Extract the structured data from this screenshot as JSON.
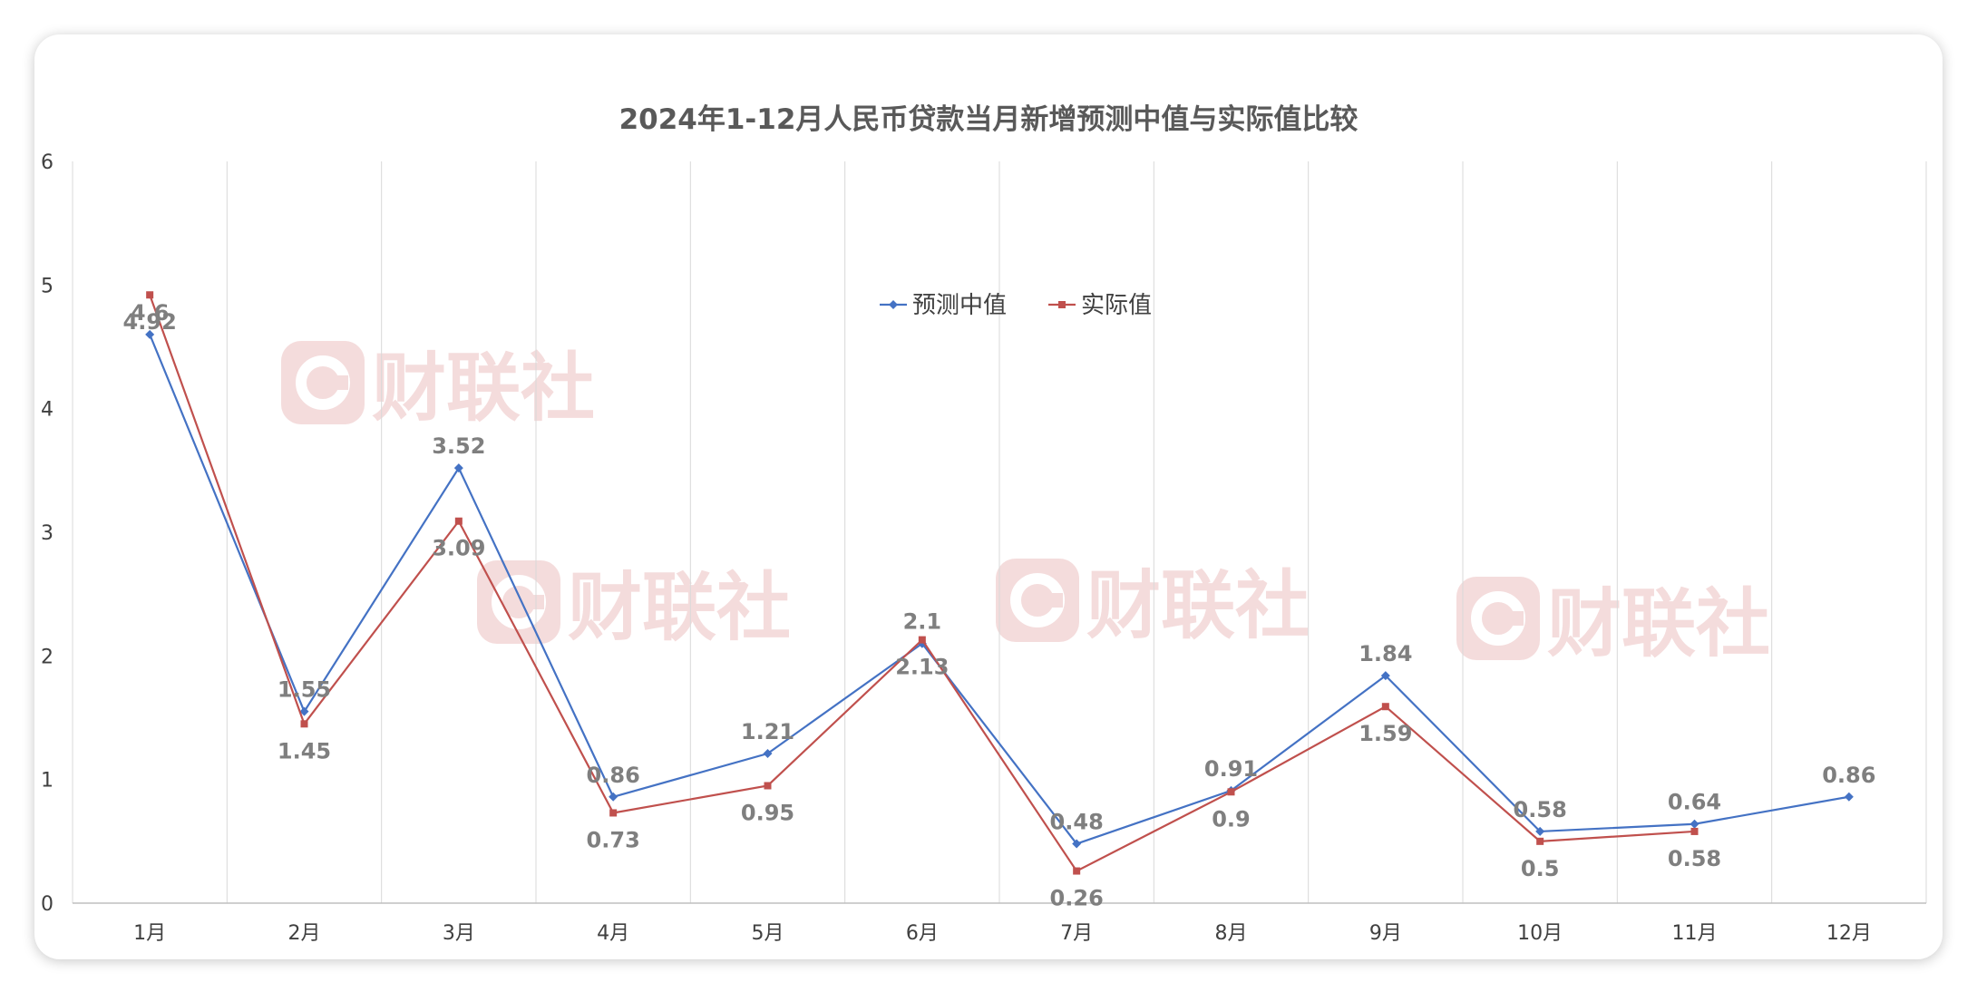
{
  "chart_data": {
    "type": "line",
    "title": "2024年1-12月人民币贷款当月新增预测中值与实际值比较",
    "xlabel": "",
    "ylabel": "",
    "categories": [
      "1月",
      "2月",
      "3月",
      "4月",
      "5月",
      "6月",
      "7月",
      "8月",
      "9月",
      "10月",
      "11月",
      "12月"
    ],
    "ylim": [
      0,
      6
    ],
    "yticks": [
      "0",
      "1",
      "2",
      "3",
      "4",
      "5",
      "6"
    ],
    "grid": "vertical",
    "legend_position": "top-center",
    "series": [
      {
        "name": "预测中值",
        "color": "#4472c4",
        "values": [
          4.6,
          1.55,
          3.52,
          0.86,
          1.21,
          2.1,
          0.48,
          0.91,
          1.84,
          0.58,
          0.64,
          0.86
        ],
        "labels": [
          "4.6",
          "1.55",
          "3.52",
          "0.86",
          "1.21",
          "2.1",
          "0.48",
          "0.91",
          "1.84",
          "0.58",
          "0.64",
          "0.86"
        ]
      },
      {
        "name": "实际值",
        "color": "#c0504d",
        "values": [
          4.92,
          1.45,
          3.09,
          0.73,
          0.95,
          2.13,
          0.26,
          0.9,
          1.59,
          0.5,
          0.58,
          null
        ],
        "labels": [
          "4.92",
          "1.45",
          "3.09",
          "0.73",
          "0.95",
          "2.13",
          "0.26",
          "0.9",
          "1.59",
          "0.5",
          "0.58",
          ""
        ]
      }
    ]
  },
  "watermark": {
    "text": "财联社",
    "color": "#f3d6d6"
  }
}
